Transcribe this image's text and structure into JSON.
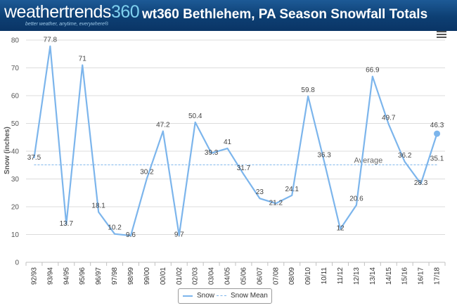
{
  "header": {
    "logo_text": "weathertrends",
    "logo_accent": "360",
    "logo_tagline": "better weather, anytime, everywhere®",
    "title": "wt360 Bethlehem, PA Season Snowfall Totals"
  },
  "menu": {
    "icon": "hamburger-menu-icon"
  },
  "legend": {
    "snow_label": "Snow",
    "mean_label": "Snow Mean"
  },
  "chart_data": {
    "type": "line",
    "title": "wt360 Bethlehem, PA Season Snowfall Totals",
    "xlabel": "",
    "ylabel": "Snow (inches)",
    "ylim": [
      0,
      80
    ],
    "yticks": [
      0,
      10,
      20,
      30,
      40,
      50,
      60,
      70,
      80
    ],
    "grid": true,
    "legend_position": "bottom-center",
    "categories": [
      "92/93",
      "93/94",
      "94/95",
      "95/96",
      "96/97",
      "97/98",
      "98/99",
      "99/00",
      "00/01",
      "01/02",
      "02/03",
      "03/04",
      "04/05",
      "05/06",
      "06/07",
      "07/08",
      "08/09",
      "09/10",
      "10/11",
      "11/12",
      "12/13",
      "13/14",
      "14/15",
      "15/16",
      "16/17",
      "17/18"
    ],
    "series": [
      {
        "name": "Snow",
        "color": "#7cb5ec",
        "values": [
          37.5,
          77.8,
          13.7,
          71,
          18.1,
          10.2,
          9.6,
          30.2,
          47.2,
          9.7,
          50.4,
          39.3,
          41,
          31.7,
          23,
          21.2,
          24.1,
          59.8,
          36.3,
          12,
          20.6,
          66.9,
          49.7,
          36.2,
          28.3,
          46.3
        ],
        "labels": [
          "37.5",
          "77.8",
          "13.7",
          "71",
          "18.1",
          "10.2",
          "9.6",
          "30.2",
          "47.2",
          "9.7",
          "50.4",
          "39.3",
          "41",
          "31.7",
          "23",
          "21.2",
          "24.1",
          "59.8",
          "36.3",
          "12",
          "20.6",
          "66.9",
          "49.7",
          "36.2",
          "28.3",
          "46.3"
        ]
      },
      {
        "name": "Snow Mean",
        "color": "#7cb5ec",
        "style": "dashed",
        "value": 35.1,
        "label": "35.1"
      }
    ],
    "annotation": {
      "text": "Average"
    }
  }
}
